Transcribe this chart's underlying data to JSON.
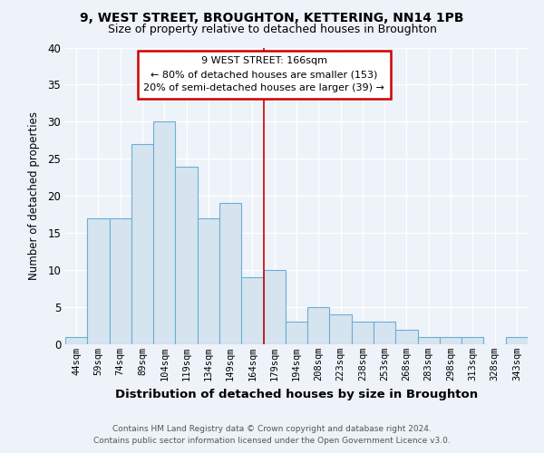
{
  "title_line1": "9, WEST STREET, BROUGHTON, KETTERING, NN14 1PB",
  "title_line2": "Size of property relative to detached houses in Broughton",
  "xlabel": "Distribution of detached houses by size in Broughton",
  "ylabel": "Number of detached properties",
  "bar_color": "#d6e4f0",
  "bar_edge_color": "#6aaed6",
  "categories": [
    "44sqm",
    "59sqm",
    "74sqm",
    "89sqm",
    "104sqm",
    "119sqm",
    "134sqm",
    "149sqm",
    "164sqm",
    "179sqm",
    "194sqm",
    "208sqm",
    "223sqm",
    "238sqm",
    "253sqm",
    "268sqm",
    "283sqm",
    "298sqm",
    "313sqm",
    "328sqm",
    "343sqm"
  ],
  "values": [
    1,
    17,
    17,
    27,
    30,
    24,
    17,
    19,
    9,
    10,
    3,
    5,
    4,
    3,
    3,
    2,
    1,
    1,
    1,
    0,
    1
  ],
  "ylim": [
    0,
    40
  ],
  "yticks": [
    0,
    5,
    10,
    15,
    20,
    25,
    30,
    35,
    40
  ],
  "vline_bin_index": 8,
  "annotation_title": "9 WEST STREET: 166sqm",
  "annotation_line1": "← 80% of detached houses are smaller (153)",
  "annotation_line2": "20% of semi-detached houses are larger (39) →",
  "footer1": "Contains HM Land Registry data © Crown copyright and database right 2024.",
  "footer2": "Contains public sector information licensed under the Open Government Licence v3.0.",
  "background_color": "#eef2f9",
  "grid_color": "#ffffff",
  "vline_color": "#cc0000",
  "annotation_box_color": "#ffffff",
  "annotation_box_edge": "#cc0000"
}
